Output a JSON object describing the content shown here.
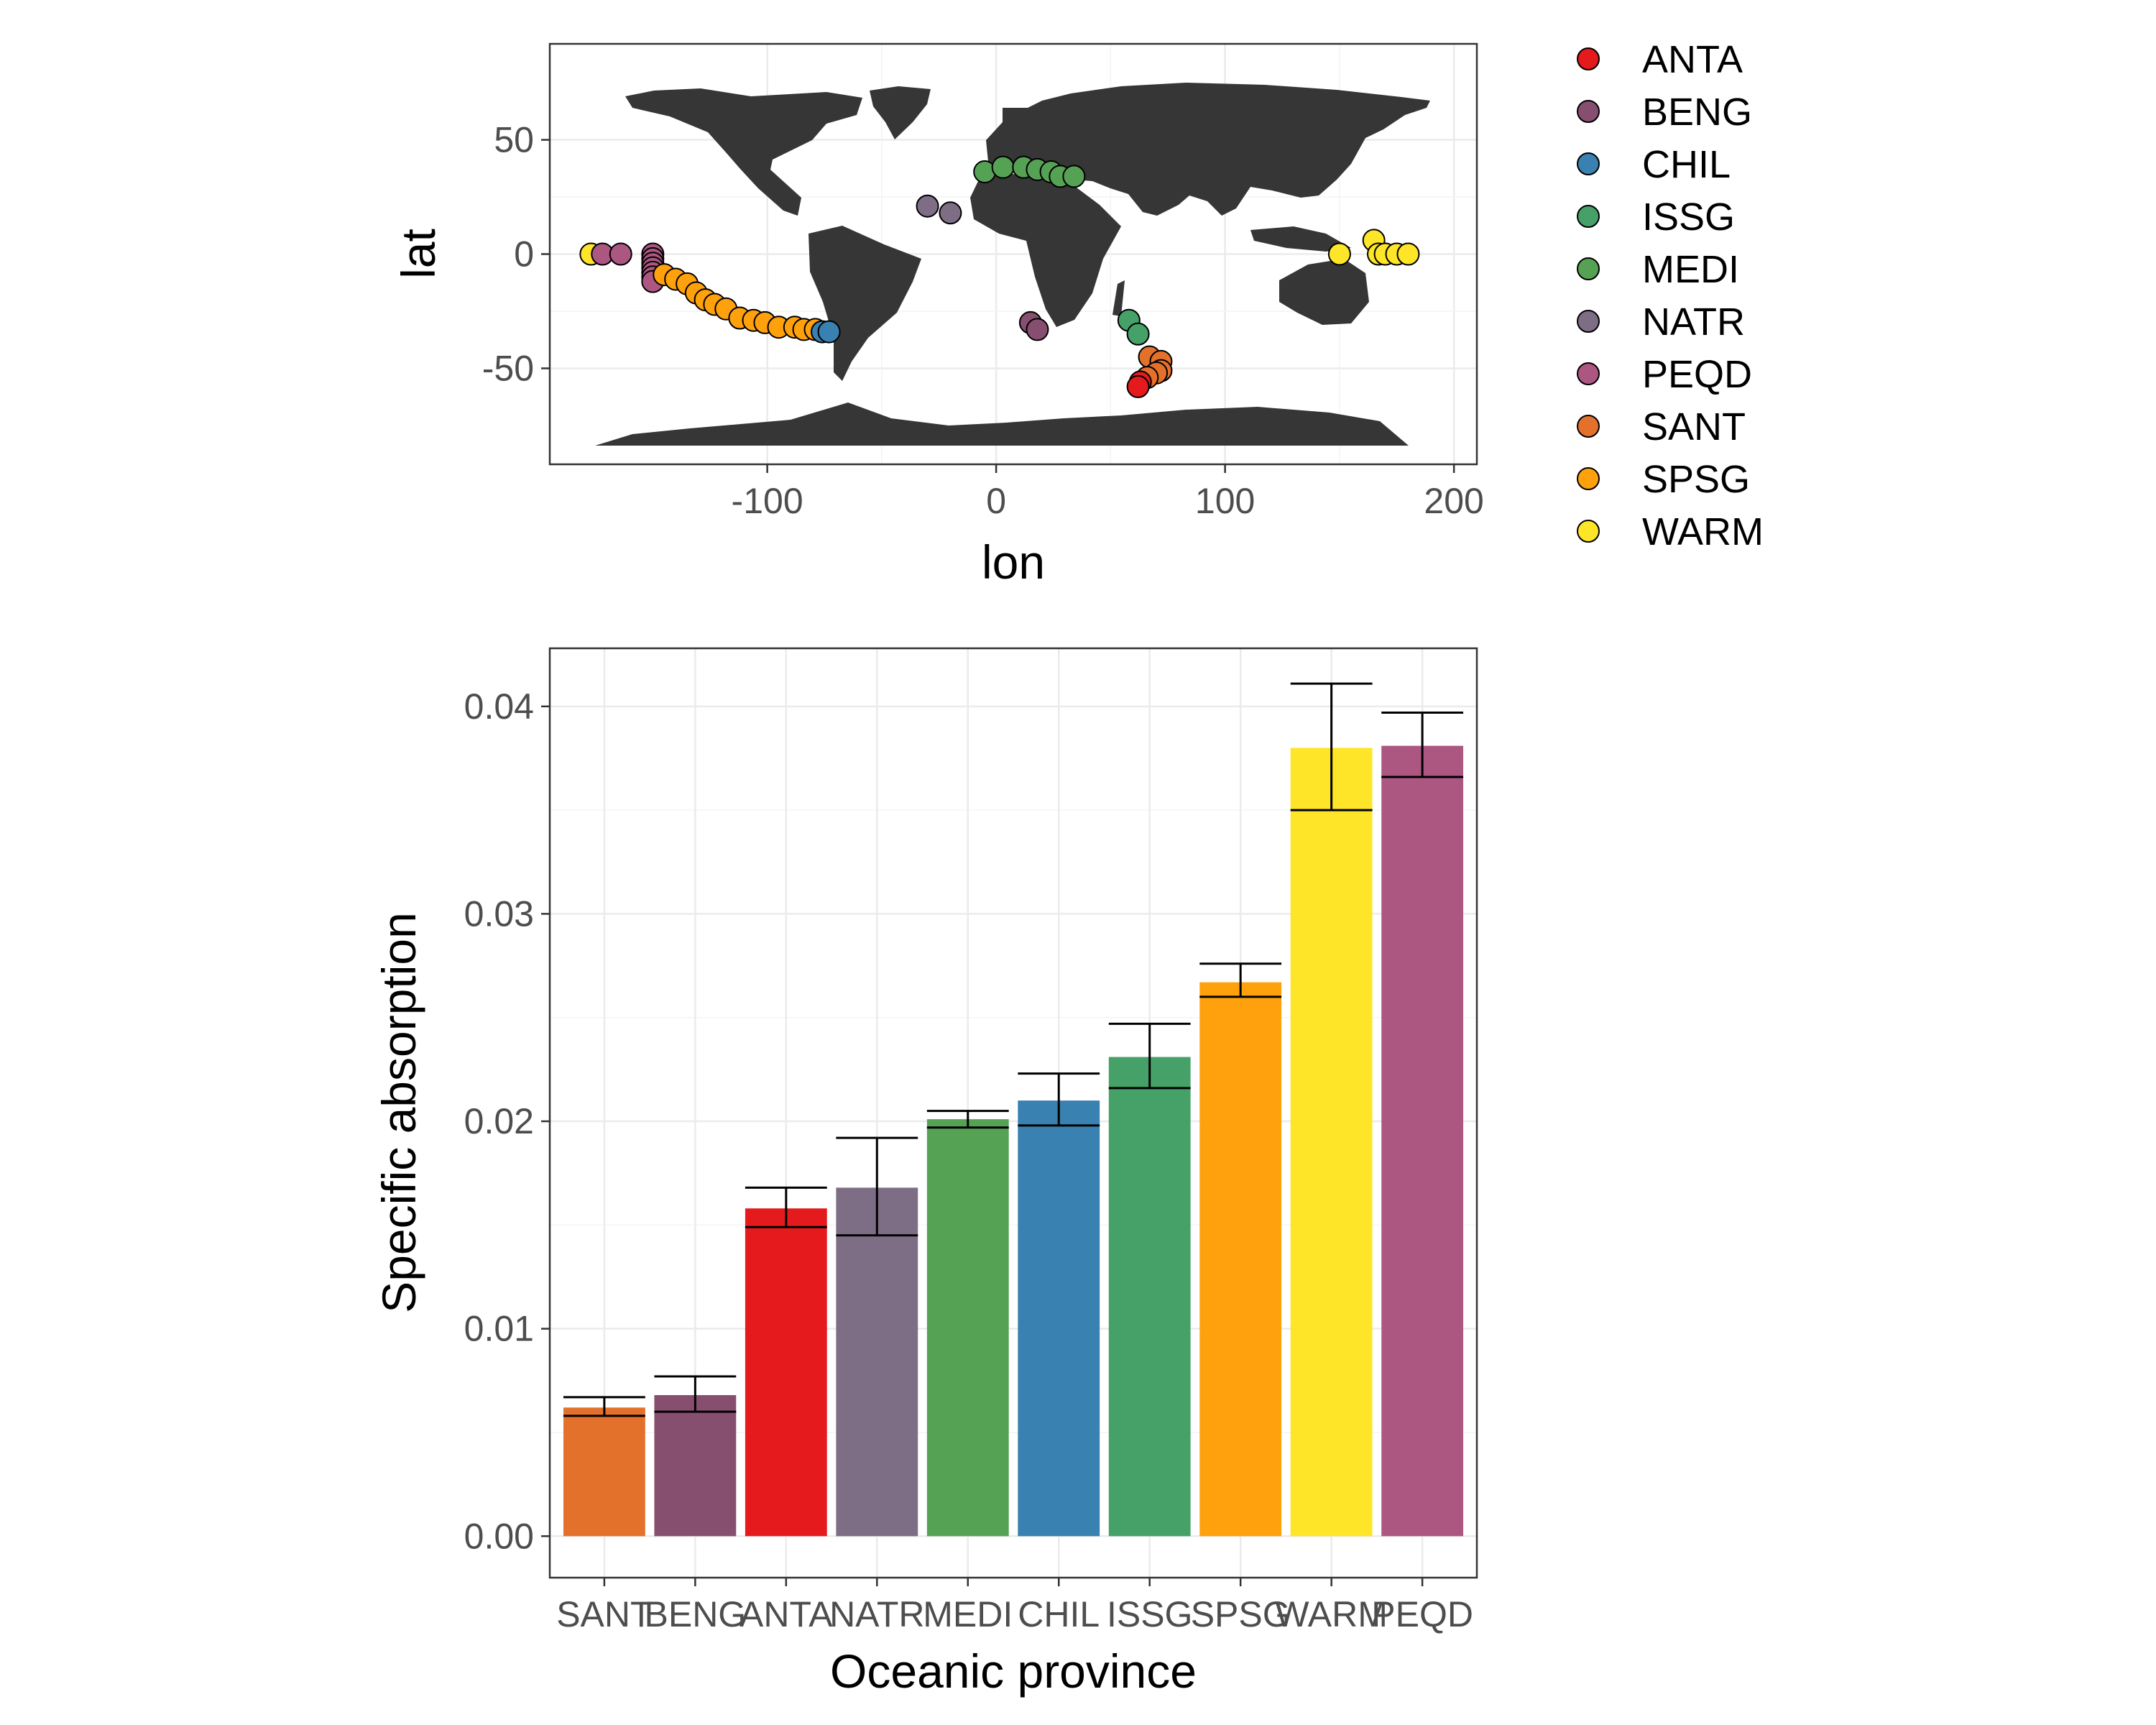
{
  "chart_data": [
    {
      "type": "scatter",
      "xlabel": "lon",
      "ylabel": "lat",
      "xlim": [
        -195,
        210
      ],
      "ylim": [
        -92,
        92
      ],
      "x_ticks": [
        -100,
        0,
        100,
        200
      ],
      "y_ticks": [
        -50,
        0,
        50
      ],
      "grid": true,
      "legend_position": "right",
      "legend": [
        {
          "name": "ANTA",
          "color": "#E41A1C"
        },
        {
          "name": "BENG",
          "color": "#874F6F"
        },
        {
          "name": "CHIL",
          "color": "#3881B0"
        },
        {
          "name": "ISSG",
          "color": "#46A169"
        },
        {
          "name": "MEDI",
          "color": "#56A255"
        },
        {
          "name": "NATR",
          "color": "#7E6E85"
        },
        {
          "name": "PEQD",
          "color": "#AC5782"
        },
        {
          "name": "SANT",
          "color": "#E3712B"
        },
        {
          "name": "SPSG",
          "color": "#FFA10D"
        },
        {
          "name": "WARM",
          "color": "#FFE528"
        }
      ],
      "series": [
        {
          "name": "WARM",
          "color": "#FFE528",
          "points": [
            [
              -177,
              0
            ],
            [
              150,
              0
            ],
            [
              165,
              6
            ],
            [
              167,
              0
            ],
            [
              170,
              0
            ],
            [
              175,
              0
            ],
            [
              180,
              0
            ]
          ]
        },
        {
          "name": "PEQD",
          "color": "#AC5782",
          "points": [
            [
              -172,
              0
            ],
            [
              -164,
              0
            ],
            [
              -150,
              0
            ],
            [
              -150,
              -2
            ],
            [
              -150,
              -4
            ],
            [
              -150,
              -6
            ],
            [
              -150,
              -8
            ],
            [
              -150,
              -10
            ],
            [
              -150,
              -12
            ]
          ]
        },
        {
          "name": "SPSG",
          "color": "#FFA10D",
          "points": [
            [
              -145,
              -9
            ],
            [
              -140,
              -11
            ],
            [
              -135,
              -13
            ],
            [
              -131,
              -17
            ],
            [
              -127,
              -20
            ],
            [
              -123,
              -22
            ],
            [
              -118,
              -24
            ],
            [
              -112,
              -28
            ],
            [
              -106,
              -29
            ],
            [
              -101,
              -30
            ],
            [
              -95,
              -32
            ],
            [
              -88,
              -32
            ],
            [
              -84,
              -33
            ],
            [
              -79,
              -33
            ]
          ]
        },
        {
          "name": "CHIL",
          "color": "#3881B0",
          "points": [
            [
              -76,
              -34
            ],
            [
              -73,
              -34
            ]
          ]
        },
        {
          "name": "NATR",
          "color": "#7E6E85",
          "points": [
            [
              -30,
              21
            ],
            [
              -20,
              18
            ]
          ]
        },
        {
          "name": "MEDI",
          "color": "#56A255",
          "points": [
            [
              -5,
              36
            ],
            [
              3,
              38
            ],
            [
              12,
              38
            ],
            [
              18,
              37
            ],
            [
              24,
              36
            ],
            [
              28,
              34
            ],
            [
              34,
              34
            ]
          ]
        },
        {
          "name": "BENG",
          "color": "#874F6F",
          "points": [
            [
              15,
              -30
            ],
            [
              18,
              -33
            ]
          ]
        },
        {
          "name": "ISSG",
          "color": "#46A169",
          "points": [
            [
              58,
              -29
            ],
            [
              62,
              -35
            ]
          ]
        },
        {
          "name": "SANT",
          "color": "#E3712B",
          "points": [
            [
              67,
              -45
            ],
            [
              72,
              -47
            ],
            [
              72,
              -51
            ],
            [
              70,
              -52
            ],
            [
              66,
              -54
            ]
          ]
        },
        {
          "name": "ANTA",
          "color": "#E41A1C",
          "points": [
            [
              63,
              -56
            ],
            [
              62,
              -58
            ]
          ]
        }
      ]
    },
    {
      "type": "bar",
      "xlabel": "Oceanic province",
      "ylabel": "Specific absorption",
      "ylim": [
        -0.002,
        0.0428
      ],
      "y_ticks": [
        "0.00",
        "0.01",
        "0.02",
        "0.03",
        "0.04"
      ],
      "grid": true,
      "categories": [
        "SANT",
        "BENG",
        "ANTA",
        "NATR",
        "MEDI",
        "CHIL",
        "ISSG",
        "SPSG",
        "WARM",
        "PEQD"
      ],
      "colors": [
        "#E3712B",
        "#874F6F",
        "#E41A1C",
        "#7E6E85",
        "#56A255",
        "#3881B0",
        "#46A169",
        "#FFA10D",
        "#FFE528",
        "#AC5782"
      ],
      "values": [
        0.0062,
        0.0068,
        0.0158,
        0.0168,
        0.0201,
        0.021,
        0.0231,
        0.0267,
        0.038,
        0.0381
      ],
      "error_low": [
        0.0058,
        0.006,
        0.0149,
        0.0145,
        0.0197,
        0.0198,
        0.0216,
        0.026,
        0.035,
        0.0366
      ],
      "error_high": [
        0.0067,
        0.0077,
        0.0168,
        0.0192,
        0.0205,
        0.0223,
        0.0247,
        0.0276,
        0.0411,
        0.0397
      ]
    }
  ]
}
